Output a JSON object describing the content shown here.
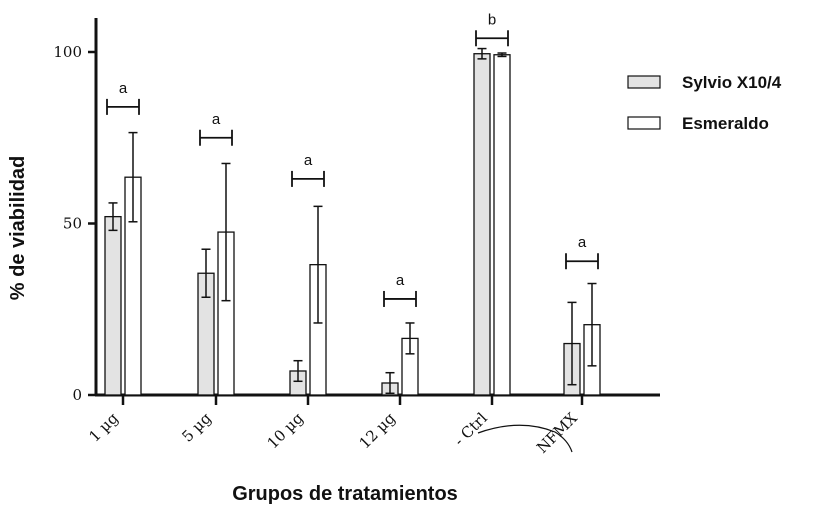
{
  "chart_data": {
    "type": "bar",
    "xlabel": "Grupos de tratamientos",
    "ylabel": "% de viabilidad",
    "ylim": [
      0,
      100
    ],
    "yticks": [
      0,
      50,
      100
    ],
    "categories": [
      "1 µg",
      "5 µg",
      "10 µg",
      "12 µg",
      "- Ctrl",
      "NFMX"
    ],
    "series": [
      {
        "name": "Sylvio X10/4",
        "color": "#e3e3e3",
        "values": [
          52,
          35.5,
          7,
          3.5,
          99.5,
          15
        ],
        "errors": [
          4,
          7,
          3,
          3,
          1.5,
          12
        ]
      },
      {
        "name": "Esmeraldo",
        "color": "#ffffff",
        "values": [
          63.5,
          47.5,
          38,
          16.5,
          99.2,
          20.5
        ],
        "errors": [
          13,
          20,
          17,
          4.5,
          0.5,
          12
        ]
      }
    ],
    "significance": [
      {
        "category": "1 µg",
        "label": "a",
        "y": 84
      },
      {
        "category": "5 µg",
        "label": "a",
        "y": 75
      },
      {
        "category": "10 µg",
        "label": "a",
        "y": 63
      },
      {
        "category": "12 µg",
        "label": "a",
        "y": 28
      },
      {
        "category": "- Ctrl",
        "label": "b",
        "y": 104
      },
      {
        "category": "NFMX",
        "label": "a",
        "y": 39
      }
    ],
    "legend_position": "top-right",
    "grid": false
  }
}
